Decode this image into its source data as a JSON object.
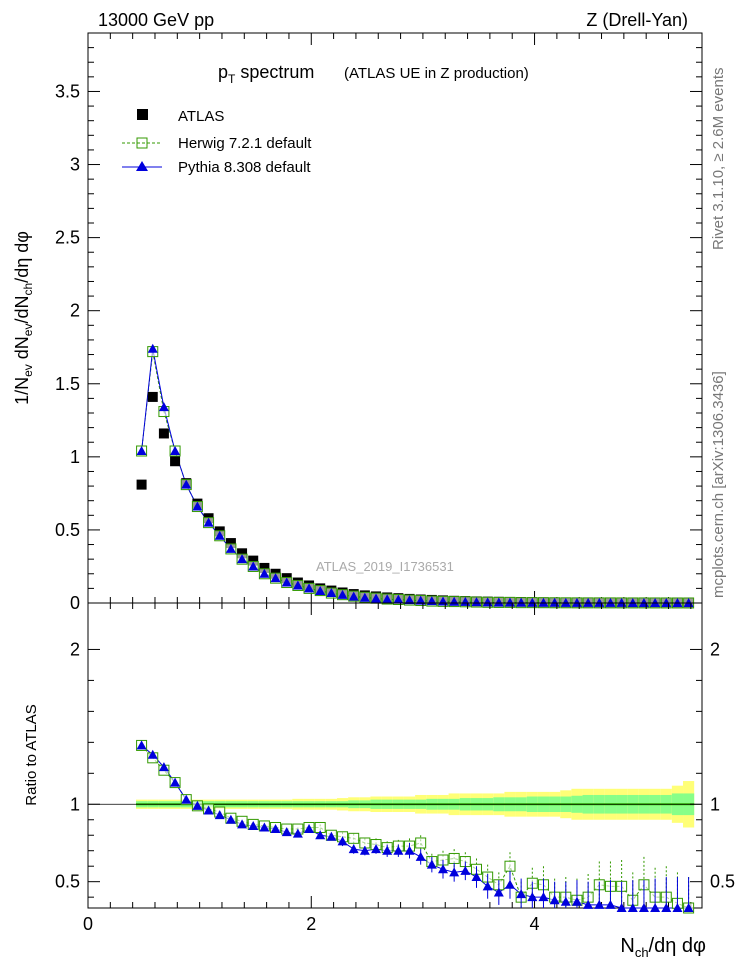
{
  "header": {
    "left": "13000 GeV pp",
    "right": "Z (Drell-Yan)"
  },
  "side_labels": {
    "rivet": "Rivet 3.1.10, ≥ 2.6M events",
    "mcplots": "mcplots.cern.ch [arXiv:1306.3436]"
  },
  "colors": {
    "atlas": "#000000",
    "herwig": "#339900",
    "pythia": "#0000dd",
    "band_outer": "#ffff77",
    "band_inner": "#88ff88",
    "ref_line": "#33bb00"
  },
  "chart_data": [
    {
      "type": "scatter",
      "title_main": "p",
      "title_sub": "T",
      "title_rest": " spectrum",
      "subtitle": "(ATLAS UE in Z production)",
      "watermark": "ATLAS_2019_I1736531",
      "ylabel": "1/N_ev dN_ev/dN_ch/dη dφ",
      "xlim": [
        0,
        5.5
      ],
      "ylim": [
        0,
        3.9
      ],
      "yticks": [
        "0",
        "0.5",
        "1",
        "1.5",
        "2",
        "2.5",
        "3",
        "3.5"
      ],
      "legend_position": "top-left",
      "legend": [
        "ATLAS",
        "Herwig 7.2.1 default",
        "Pythia 8.308 default"
      ],
      "x": [
        0.48,
        0.58,
        0.68,
        0.78,
        0.88,
        0.98,
        1.08,
        1.18,
        1.28,
        1.38,
        1.48,
        1.58,
        1.68,
        1.78,
        1.88,
        1.98,
        2.08,
        2.18,
        2.28,
        2.38,
        2.48,
        2.58,
        2.68,
        2.78,
        2.88,
        2.98,
        3.08,
        3.18,
        3.28,
        3.38,
        3.48,
        3.58,
        3.68,
        3.78,
        3.88,
        3.98,
        4.08,
        4.18,
        4.28,
        4.38,
        4.48,
        4.58,
        4.68,
        4.78,
        4.88,
        4.98,
        5.08,
        5.18,
        5.28,
        5.38
      ],
      "series": [
        {
          "name": "ATLAS",
          "values": [
            0.81,
            1.41,
            1.16,
            0.97,
            0.82,
            0.68,
            0.58,
            0.49,
            0.41,
            0.34,
            0.29,
            0.24,
            0.2,
            0.17,
            0.14,
            0.12,
            0.1,
            0.085,
            0.072,
            0.061,
            0.052,
            0.045,
            0.038,
            0.033,
            0.028,
            0.024,
            0.021,
            0.018,
            0.015,
            0.013,
            0.011,
            0.0095,
            0.0082,
            0.007,
            0.006,
            0.005,
            0.0043,
            0.0037,
            0.0032,
            0.0027,
            0.0023,
            0.002,
            0.0017,
            0.0015,
            0.0013,
            0.0011,
            0.0009,
            0.0008,
            0.0007,
            0.0006
          ]
        },
        {
          "name": "Herwig 7.2.1 default",
          "values": [
            1.04,
            1.72,
            1.31,
            1.04,
            0.81,
            0.66,
            0.55,
            0.46,
            0.37,
            0.3,
            0.25,
            0.2,
            0.17,
            0.14,
            0.12,
            0.1,
            0.085,
            0.068,
            0.057,
            0.047,
            0.039,
            0.033,
            0.027,
            0.024,
            0.02,
            0.017,
            0.013,
            0.011,
            0.0098,
            0.0082,
            0.0064,
            0.0048,
            0.0039,
            0.0042,
            0.0024,
            0.0024,
            0.002,
            0.0015,
            0.0013,
            0.001,
            0.001,
            0.0009,
            0.0008,
            0.0006,
            0.0005,
            0.0005,
            0.0004,
            0.0003,
            0.0003,
            0.0002
          ]
        },
        {
          "name": "Pythia 8.308 default",
          "values": [
            1.04,
            1.74,
            1.34,
            1.04,
            0.81,
            0.66,
            0.55,
            0.46,
            0.37,
            0.3,
            0.25,
            0.2,
            0.17,
            0.14,
            0.12,
            0.1,
            0.082,
            0.068,
            0.056,
            0.044,
            0.036,
            0.031,
            0.026,
            0.023,
            0.02,
            0.016,
            0.013,
            0.01,
            0.0083,
            0.0073,
            0.0057,
            0.0047,
            0.0035,
            0.0034,
            0.0025,
            0.002,
            0.0017,
            0.0014,
            0.0012,
            0.001,
            0.0008,
            0.0007,
            0.0006,
            0.0005,
            0.0004,
            0.0003,
            0.0003,
            0.0002,
            0.0002,
            0.0002
          ]
        }
      ]
    },
    {
      "type": "scatter",
      "ylabel": "Ratio to ATLAS",
      "xlabel": "N_ch/dη dφ",
      "xlim": [
        0,
        5.5
      ],
      "ylim": [
        0.33,
        2.3
      ],
      "xticks": [
        "0",
        "2",
        "4"
      ],
      "yticks": [
        "0.5",
        "1",
        "2"
      ],
      "x": [
        0.48,
        0.58,
        0.68,
        0.78,
        0.88,
        0.98,
        1.08,
        1.18,
        1.28,
        1.38,
        1.48,
        1.58,
        1.68,
        1.78,
        1.88,
        1.98,
        2.08,
        2.18,
        2.28,
        2.38,
        2.48,
        2.58,
        2.68,
        2.78,
        2.88,
        2.98,
        3.08,
        3.18,
        3.28,
        3.38,
        3.48,
        3.58,
        3.68,
        3.78,
        3.88,
        3.98,
        4.08,
        4.18,
        4.28,
        4.38,
        4.48,
        4.58,
        4.68,
        4.78,
        4.88,
        4.98,
        5.08,
        5.18,
        5.28,
        5.38
      ],
      "band_inner_halfwidth": [
        0.02,
        0.02,
        0.02,
        0.02,
        0.02,
        0.02,
        0.02,
        0.02,
        0.02,
        0.02,
        0.02,
        0.02,
        0.02,
        0.02,
        0.02,
        0.02,
        0.02,
        0.02,
        0.02,
        0.025,
        0.025,
        0.03,
        0.03,
        0.03,
        0.03,
        0.03,
        0.035,
        0.035,
        0.035,
        0.04,
        0.04,
        0.04,
        0.045,
        0.045,
        0.045,
        0.05,
        0.05,
        0.05,
        0.05,
        0.055,
        0.06,
        0.06,
        0.06,
        0.06,
        0.06,
        0.06,
        0.06,
        0.06,
        0.07,
        0.07
      ],
      "band_outer_halfwidth": [
        0.03,
        0.03,
        0.03,
        0.03,
        0.03,
        0.03,
        0.03,
        0.03,
        0.03,
        0.03,
        0.03,
        0.03,
        0.03,
        0.03,
        0.035,
        0.035,
        0.035,
        0.035,
        0.04,
        0.045,
        0.045,
        0.05,
        0.05,
        0.05,
        0.05,
        0.06,
        0.06,
        0.06,
        0.07,
        0.07,
        0.07,
        0.07,
        0.07,
        0.08,
        0.08,
        0.08,
        0.08,
        0.08,
        0.09,
        0.1,
        0.1,
        0.1,
        0.1,
        0.1,
        0.1,
        0.1,
        0.1,
        0.1,
        0.12,
        0.15
      ],
      "series": [
        {
          "name": "Herwig 7.2.1 default",
          "values": [
            1.38,
            1.3,
            1.22,
            1.14,
            1.03,
            0.99,
            0.97,
            0.95,
            0.91,
            0.89,
            0.87,
            0.86,
            0.85,
            0.84,
            0.84,
            0.85,
            0.85,
            0.8,
            0.79,
            0.78,
            0.75,
            0.74,
            0.72,
            0.73,
            0.73,
            0.75,
            0.63,
            0.64,
            0.65,
            0.63,
            0.58,
            0.53,
            0.48,
            0.6,
            0.4,
            0.49,
            0.48,
            0.4,
            0.4,
            0.38,
            0.4,
            0.48,
            0.47,
            0.47,
            0.38,
            0.48,
            0.4,
            0.4,
            0.36,
            0.33
          ],
          "errors": [
            0.01,
            0.01,
            0.01,
            0.01,
            0.01,
            0.01,
            0.01,
            0.01,
            0.01,
            0.01,
            0.01,
            0.01,
            0.01,
            0.01,
            0.01,
            0.02,
            0.02,
            0.02,
            0.03,
            0.03,
            0.03,
            0.04,
            0.04,
            0.04,
            0.05,
            0.05,
            0.05,
            0.06,
            0.06,
            0.06,
            0.07,
            0.08,
            0.08,
            0.09,
            0.1,
            0.1,
            0.12,
            0.12,
            0.13,
            0.14,
            0.15,
            0.15,
            0.16,
            0.17,
            0.18,
            0.18,
            0.19,
            0.2,
            0.2,
            0.2
          ]
        },
        {
          "name": "Pythia 8.308 default",
          "values": [
            1.38,
            1.32,
            1.24,
            1.14,
            1.03,
            0.99,
            0.96,
            0.93,
            0.9,
            0.87,
            0.86,
            0.85,
            0.84,
            0.82,
            0.81,
            0.84,
            0.8,
            0.79,
            0.76,
            0.71,
            0.7,
            0.71,
            0.7,
            0.7,
            0.7,
            0.66,
            0.61,
            0.58,
            0.56,
            0.57,
            0.53,
            0.47,
            0.43,
            0.48,
            0.42,
            0.4,
            0.4,
            0.38,
            0.37,
            0.37,
            0.35,
            0.35,
            0.35,
            0.33,
            0.33,
            0.33,
            0.33,
            0.33,
            0.33,
            0.33
          ],
          "errors": [
            0.01,
            0.01,
            0.01,
            0.01,
            0.01,
            0.01,
            0.01,
            0.01,
            0.01,
            0.01,
            0.01,
            0.01,
            0.01,
            0.01,
            0.01,
            0.02,
            0.02,
            0.02,
            0.03,
            0.03,
            0.03,
            0.03,
            0.04,
            0.04,
            0.05,
            0.05,
            0.05,
            0.06,
            0.06,
            0.06,
            0.07,
            0.08,
            0.08,
            0.09,
            0.1,
            0.1,
            0.12,
            0.12,
            0.13,
            0.14,
            0.15,
            0.15,
            0.16,
            0.17,
            0.18,
            0.18,
            0.19,
            0.2,
            0.2,
            0.2
          ]
        }
      ]
    }
  ]
}
